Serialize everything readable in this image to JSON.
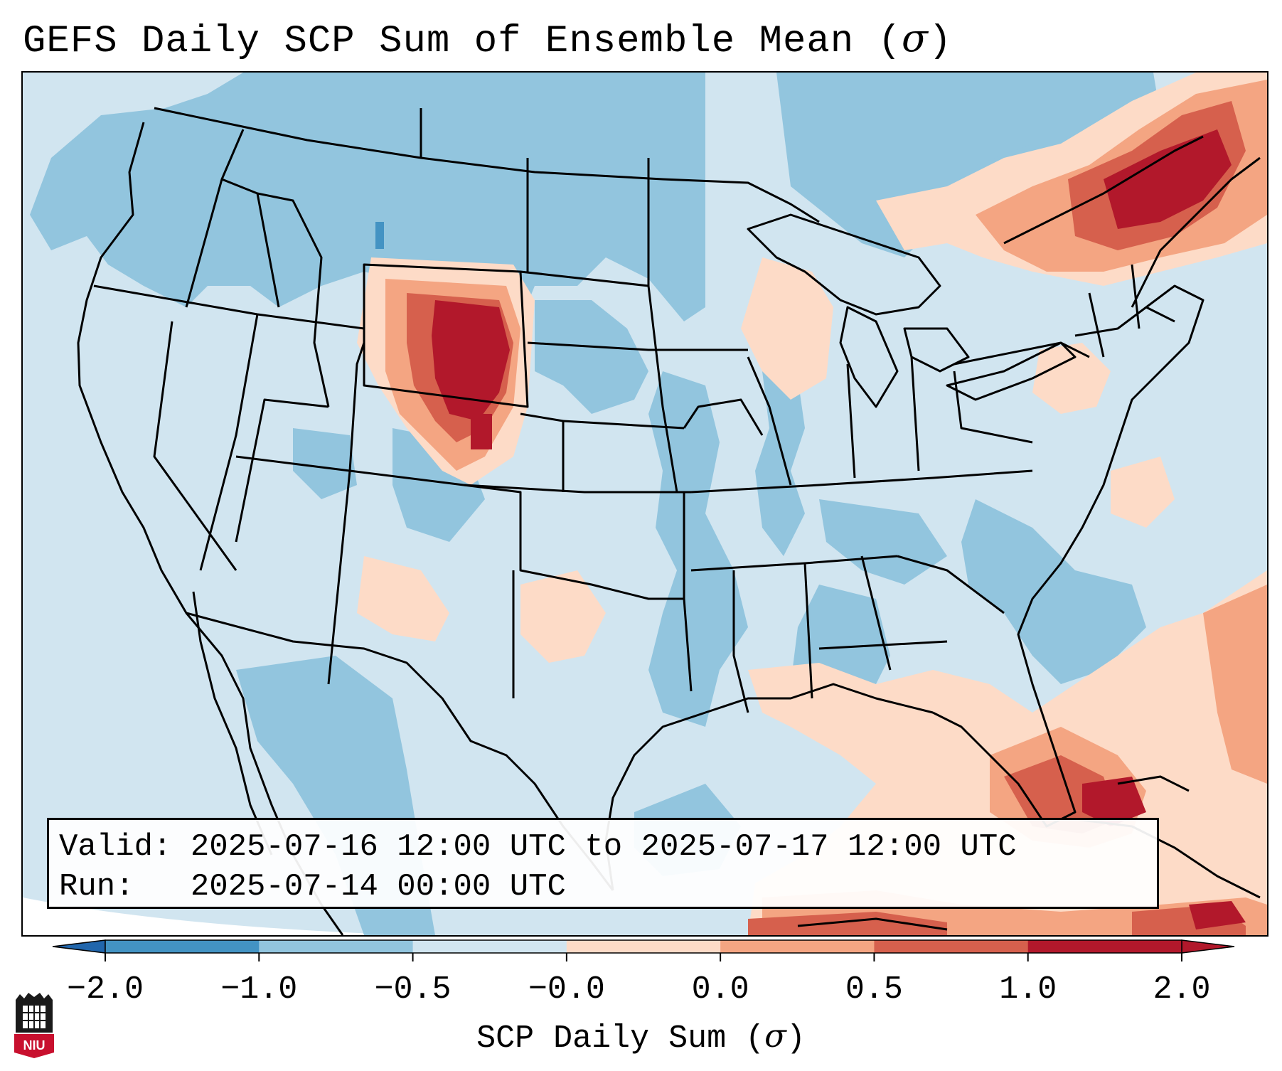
{
  "title": {
    "text": "GEFS Daily SCP Sum of Ensemble Mean (",
    "symbol": "σ",
    "close": ")"
  },
  "info": {
    "valid_label": "Valid:",
    "valid_value": "2025-07-16 12:00 UTC to 2025-07-17 12:00 UTC",
    "run_label": "Run:",
    "run_value": "2025-07-14 00:00 UTC"
  },
  "colorbar": {
    "label_text": "SCP Daily Sum (",
    "label_symbol": "σ",
    "label_close": ")",
    "ticks": [
      "−2.0",
      "−1.0",
      "−0.5",
      "−0.0",
      "0.0",
      "0.5",
      "1.0",
      "2.0"
    ],
    "colors": [
      "#4393c3",
      "#92c5de",
      "#d1e5f0",
      "#fddbc7",
      "#f4a582",
      "#d6604d",
      "#b2182b"
    ],
    "extend_low": "#2166ac",
    "extend_high": "#b2182b"
  },
  "logo": {
    "text": "NIU"
  },
  "palette": {
    "ocean": "#d1e5f0",
    "light_blue": "#d1e5f0",
    "mid_blue": "#92c5de",
    "deep_blue": "#4393c3",
    "light_red": "#fddbc7",
    "mid_red": "#f4a582",
    "red": "#d6604d",
    "dark_red": "#b2182b"
  }
}
